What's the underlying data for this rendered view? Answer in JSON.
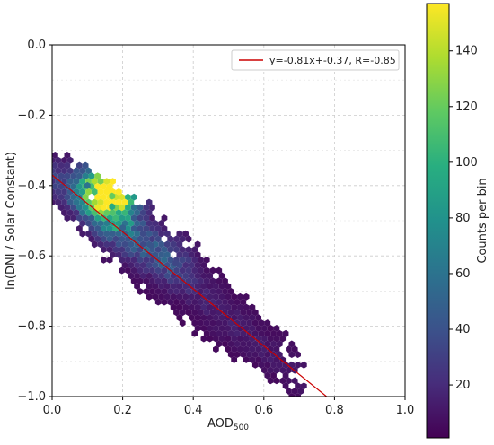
{
  "chart_data": {
    "type": "heatmap",
    "subtype": "hexbin-scatter",
    "xlabel": "AOD",
    "xlabel_subscript": "500",
    "ylabel": "ln(DNI / Solar Constant)",
    "xlim": [
      0.0,
      1.0
    ],
    "ylim": [
      -1.0,
      0.0
    ],
    "x_ticks": [
      "0.0",
      "0.2",
      "0.4",
      "0.6",
      "0.8",
      "1.0"
    ],
    "y_ticks": [
      "0.0",
      "−0.2",
      "−0.4",
      "−0.6",
      "−0.8",
      "−1.0"
    ],
    "grid": true,
    "legend": {
      "placement": "top-right",
      "entries": [
        {
          "label": "y=-0.81x+-0.37, R=-0.85",
          "color": "#cc0000"
        }
      ]
    },
    "fit_line": {
      "slope": -0.81,
      "intercept": -0.37,
      "R": -0.85,
      "color": "#cc0000"
    },
    "colorbar": {
      "label": "Counts per bin",
      "range": [
        1,
        157
      ],
      "ticks": [
        "20",
        "40",
        "60",
        "80",
        "100",
        "120",
        "140"
      ],
      "colormap": "viridis"
    },
    "density_trend": [
      {
        "x": 0.0,
        "y": -0.37
      },
      {
        "x": 0.1,
        "y": -0.45
      },
      {
        "x": 0.2,
        "y": -0.53
      },
      {
        "x": 0.3,
        "y": -0.61
      },
      {
        "x": 0.4,
        "y": -0.69
      },
      {
        "x": 0.5,
        "y": -0.78
      },
      {
        "x": 0.6,
        "y": -0.86
      },
      {
        "x": 0.7,
        "y": -0.94
      }
    ],
    "peak_bins": [
      {
        "x": 0.16,
        "y": -0.41,
        "count": 157
      },
      {
        "x": 0.17,
        "y": -0.43,
        "count": 120
      },
      {
        "x": 0.17,
        "y": -0.46,
        "count": 95
      },
      {
        "x": 0.1,
        "y": -0.4,
        "count": 60
      },
      {
        "x": 0.2,
        "y": -0.52,
        "count": 50
      },
      {
        "x": 0.28,
        "y": -0.57,
        "count": 42
      },
      {
        "x": 0.35,
        "y": -0.62,
        "count": 34
      }
    ]
  },
  "colors": {
    "fit_line": "#cc0000",
    "grid": "#cccccc"
  }
}
